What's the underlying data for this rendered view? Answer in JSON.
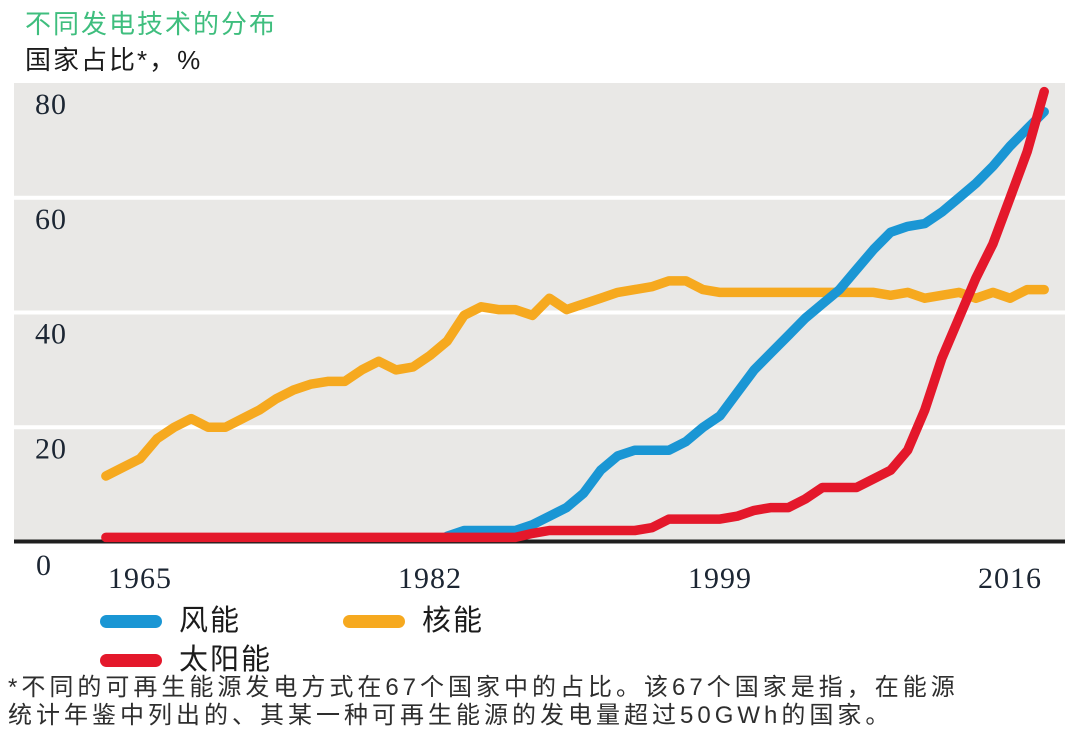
{
  "header": {
    "title": "不同发电技术的分布",
    "subtitle": "国家占比*，%",
    "title_color": "#3fbe7e"
  },
  "chart_data": {
    "type": "line",
    "title": "不同发电技术的分布",
    "subtitle": "国家占比*，%",
    "x": [
      1963,
      1964,
      1965,
      1966,
      1967,
      1968,
      1969,
      1970,
      1971,
      1972,
      1973,
      1974,
      1975,
      1976,
      1977,
      1978,
      1979,
      1980,
      1981,
      1982,
      1983,
      1984,
      1985,
      1986,
      1987,
      1988,
      1989,
      1990,
      1991,
      1992,
      1993,
      1994,
      1995,
      1996,
      1997,
      1998,
      1999,
      2000,
      2001,
      2002,
      2003,
      2004,
      2005,
      2006,
      2007,
      2008,
      2009,
      2010,
      2011,
      2012,
      2013,
      2014,
      2015,
      2016,
      2017,
      2018
    ],
    "series": [
      {
        "key": "wind",
        "name": "风能",
        "color": "#1a96d4",
        "values": [
          null,
          null,
          null,
          null,
          null,
          null,
          null,
          null,
          null,
          null,
          null,
          null,
          null,
          null,
          null,
          null,
          null,
          null,
          null,
          null,
          1,
          2,
          2,
          2,
          2,
          3,
          4.5,
          6,
          8.5,
          12.5,
          15,
          16,
          16,
          16,
          17.5,
          20,
          22,
          26,
          30,
          33,
          36,
          39,
          41.5,
          44,
          47.5,
          51,
          54,
          55,
          55.5,
          57.5,
          60,
          62.5,
          65.5,
          69,
          72,
          75
        ]
      },
      {
        "key": "nuclear",
        "name": "核能",
        "color": "#f6a91f",
        "values": [
          11.5,
          13,
          14.5,
          18,
          20,
          21.5,
          20,
          20,
          21.5,
          23,
          25,
          26.5,
          27.5,
          28,
          28,
          30,
          31.5,
          30,
          30.5,
          32.5,
          35,
          39.5,
          41,
          40.5,
          40.5,
          39.5,
          42.5,
          40.5,
          41.5,
          42.5,
          43.5,
          44,
          44.5,
          45.5,
          45.5,
          44,
          43.5,
          43.5,
          43.5,
          43.5,
          43.5,
          43.5,
          43.5,
          43.5,
          43.5,
          43.5,
          43,
          43.5,
          42.5,
          43,
          43.5,
          42.5,
          43.5,
          42.5,
          44,
          44
        ]
      },
      {
        "key": "solar",
        "name": "太阳能",
        "color": "#e4182b",
        "values": [
          0.8,
          0.8,
          0.8,
          0.8,
          0.8,
          0.8,
          0.8,
          0.8,
          0.8,
          0.8,
          0.8,
          0.8,
          0.8,
          0.8,
          0.8,
          0.8,
          0.8,
          0.8,
          0.8,
          0.8,
          0.8,
          0.8,
          0.8,
          0.8,
          0.8,
          1.5,
          2,
          2,
          2,
          2,
          2,
          2,
          2.5,
          4,
          4,
          4,
          4,
          4.5,
          5.5,
          6,
          6,
          7.5,
          9.5,
          9.5,
          9.5,
          11,
          12.5,
          16,
          23,
          32,
          39,
          46,
          52,
          60,
          68,
          78.5
        ]
      }
    ],
    "xticks": [
      1965,
      1982,
      1999,
      2016
    ],
    "yticks": [
      80,
      60,
      40,
      20,
      0
    ],
    "xlim": [
      1963,
      2019
    ],
    "ylim": [
      0,
      80
    ],
    "grid": "horizontal",
    "plot_band_color": "#e9e8e6",
    "gridline_color": "#ffffff",
    "axis_color": "#1f1f1f",
    "tick_label_color": "#1c2633",
    "legend_position": "bottom-left",
    "draw_order": [
      1,
      0,
      2
    ]
  },
  "legend": {
    "items": [
      "风能",
      "核能",
      "太阳能"
    ]
  },
  "footnote": {
    "line1": "*不同的可再生能源发电方式在67个国家中的占比。该67个国家是指，在能源",
    "line2": "统计年鉴中列出的、其某一种可再生能源的发电量超过50GWh的国家。"
  }
}
